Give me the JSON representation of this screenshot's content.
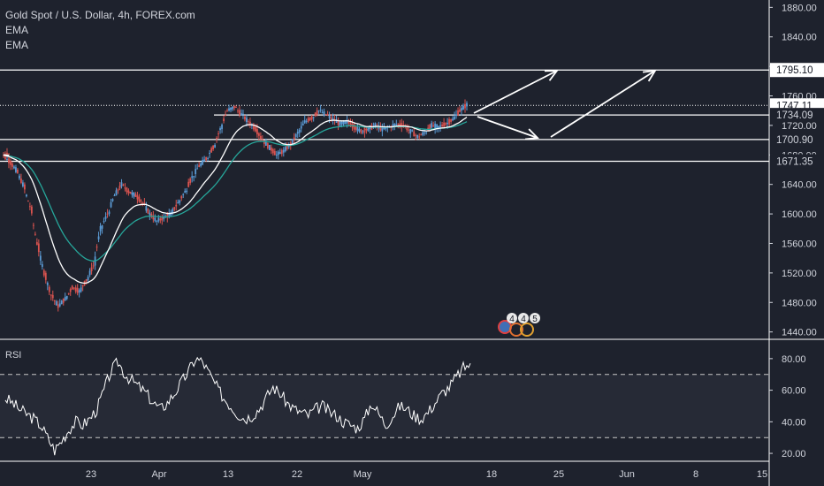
{
  "legend": {
    "title": "Gold Spot / U.S. Dollar, 4h, FOREX.com",
    "indicators": [
      "EMA",
      "EMA"
    ]
  },
  "rsi_label": "RSI",
  "colors": {
    "background": "#1e222d",
    "up_candle": "#5b9bd5",
    "down_candle": "#d9534f",
    "ema_fast": "#ffffff",
    "ema_slow": "#26a69a",
    "rsi_line": "#ffffff",
    "level_line": "#ffffff",
    "axis_text": "#d1d4dc"
  },
  "chart_data": [
    {
      "type": "candlestick",
      "title": "Gold Spot / U.S. Dollar, 4h, FOREX.com",
      "ylim": [
        1430,
        1890
      ],
      "y_ticks": [
        "1880.00",
        "1840.00",
        "1800.00",
        "1760.00",
        "1720.00",
        "1680.00",
        "1640.00",
        "1600.00",
        "1560.00",
        "1520.00",
        "1480.00",
        "1440.00"
      ],
      "x_ticks": [
        "23",
        "Apr",
        "13",
        "22",
        "May",
        "18",
        "25",
        "Jun",
        "8",
        "15"
      ],
      "price_labels": [
        {
          "text": "1795.10",
          "value": 1795.1,
          "boxed": true
        },
        {
          "text": "1747.11",
          "value": 1747.11,
          "boxed": true
        },
        {
          "text": "1734.09",
          "value": 1734.09,
          "boxed": false
        },
        {
          "text": "1700.90",
          "value": 1700.9,
          "boxed": false
        },
        {
          "text": "1671.35",
          "value": 1671.35,
          "boxed": false
        }
      ],
      "horizontal_levels": [
        1795.1,
        1734.09,
        1700.9,
        1671.35
      ],
      "dotted_level": 1747.11,
      "series_closes": [
        1680,
        1672,
        1660,
        1640,
        1610,
        1560,
        1520,
        1490,
        1475,
        1485,
        1500,
        1495,
        1510,
        1530,
        1580,
        1600,
        1625,
        1640,
        1630,
        1625,
        1615,
        1600,
        1590,
        1595,
        1600,
        1615,
        1630,
        1650,
        1665,
        1675,
        1690,
        1715,
        1740,
        1745,
        1735,
        1725,
        1715,
        1700,
        1690,
        1680,
        1685,
        1695,
        1710,
        1725,
        1730,
        1740,
        1735,
        1728,
        1722,
        1725,
        1718,
        1712,
        1715,
        1720,
        1715,
        1718,
        1722,
        1720,
        1712,
        1705,
        1710,
        1720,
        1718,
        1722,
        1728,
        1740,
        1748
      ],
      "annotations": [
        "arrow to 1795.10",
        "arrow down to 1700.90",
        "arrow up to 1795.10"
      ],
      "badges": [
        "4",
        "4",
        "5"
      ]
    },
    {
      "type": "line",
      "title": "RSI",
      "ylim": [
        15,
        90
      ],
      "y_ticks": [
        "80.00",
        "60.00",
        "40.00",
        "20.00"
      ],
      "bands": [
        70,
        30
      ],
      "values": [
        55,
        52,
        48,
        45,
        42,
        38,
        30,
        22,
        28,
        35,
        40,
        38,
        42,
        48,
        60,
        72,
        78,
        70,
        66,
        62,
        58,
        52,
        48,
        52,
        58,
        65,
        72,
        80,
        78,
        70,
        62,
        55,
        50,
        45,
        42,
        44,
        48,
        55,
        62,
        58,
        52,
        48,
        46,
        44,
        48,
        50,
        46,
        44,
        40,
        38,
        36,
        42,
        52,
        45,
        38,
        44,
        50,
        48,
        44,
        42,
        46,
        52,
        58,
        62,
        68,
        74,
        77
      ]
    }
  ]
}
